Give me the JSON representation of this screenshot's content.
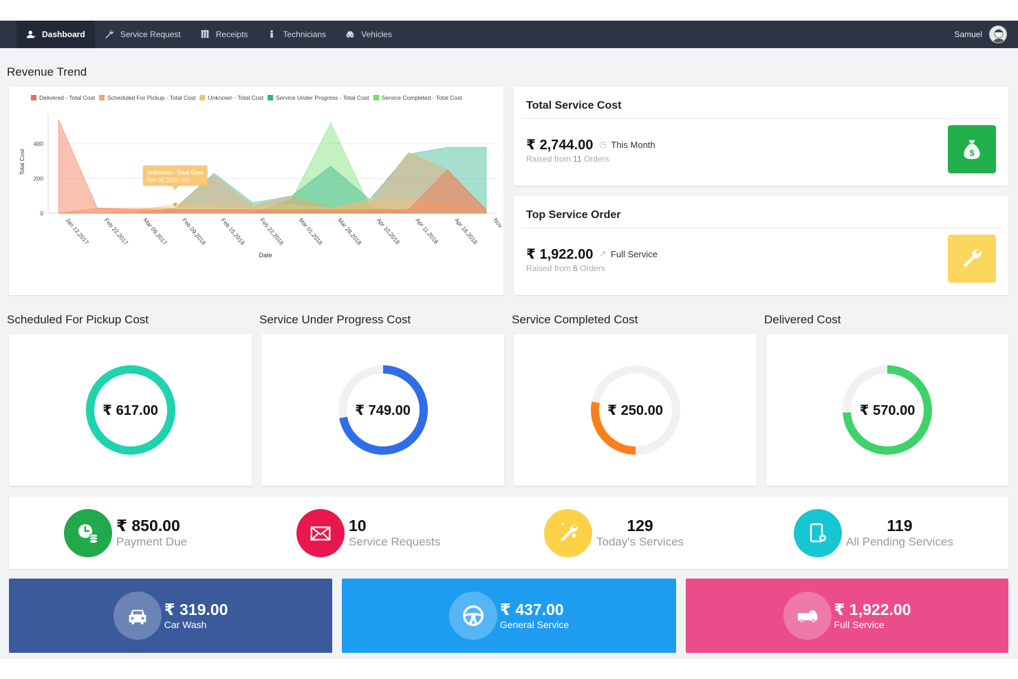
{
  "nav": {
    "items": [
      {
        "label": "Dashboard",
        "icon": "user-icon"
      },
      {
        "label": "Service Request",
        "icon": "wrench-icon"
      },
      {
        "label": "Receipts",
        "icon": "receipt-icon"
      },
      {
        "label": "Technicians",
        "icon": "technician-icon"
      },
      {
        "label": "Vehicles",
        "icon": "car-icon"
      }
    ],
    "user": "Samuel"
  },
  "revenue": {
    "title": "Revenue Trend",
    "tooltip_title": "Unknown - Total Cost",
    "tooltip_value": "Feb 09,2018 : 50"
  },
  "chart_data": {
    "type": "area",
    "xlabel": "Date",
    "ylabel": "Total Cost",
    "ylim": [
      0,
      550
    ],
    "yticks": [
      0,
      200,
      400
    ],
    "legend_position": "top",
    "x": [
      "Jan 12,2017",
      "Feb 22,2017",
      "Mar 09,2017",
      "Feb 09,2018",
      "Feb 15,2018",
      "Feb 22,2018",
      "Mar 01,2018",
      "Mar 28,2018",
      "Apr 10,2018",
      "Apr 11,2018",
      "Apr 18,2018",
      "Nov"
    ],
    "series": [
      {
        "name": "Delivered - Total Cost",
        "color": "#f26b4a",
        "values": [
          540,
          30,
          20,
          20,
          20,
          20,
          20,
          20,
          20,
          20,
          250,
          20
        ]
      },
      {
        "name": "Scheduled For Pickup - Total Cost",
        "color": "#f5a26b",
        "values": [
          0,
          30,
          30,
          30,
          220,
          40,
          100,
          30,
          60,
          350,
          250,
          20
        ]
      },
      {
        "name": "Unknown - Total Cost",
        "color": "#fbc26e",
        "values": [
          0,
          0,
          20,
          50,
          50,
          40,
          50,
          30,
          80,
          80,
          50,
          20
        ]
      },
      {
        "name": "Service Under Progress - Total Cost",
        "color": "#2cb38a",
        "values": [
          0,
          0,
          0,
          30,
          230,
          60,
          100,
          270,
          80,
          340,
          380,
          380
        ]
      },
      {
        "name": "Service Completed - Total Cost",
        "color": "#6fdd6a",
        "values": [
          0,
          0,
          0,
          0,
          0,
          0,
          80,
          520,
          40,
          0,
          0,
          0
        ]
      }
    ]
  },
  "total_service": {
    "title": "Total Service Cost",
    "amount": "₹ 2,744.00",
    "period": "This Month",
    "raised_prefix": "Raised from",
    "raised_count": "11",
    "raised_suffix": "Orders",
    "badge_color": "#21b04a",
    "icon": "money-bag-icon"
  },
  "top_service": {
    "title": "Top Service Order",
    "amount": "₹ 1,922.00",
    "service": "Full Service",
    "raised_prefix": "Raised from",
    "raised_count": "6",
    "raised_suffix": "Orders",
    "badge_color": "#fbd85d",
    "icon": "wrench-icon"
  },
  "donuts": [
    {
      "title": "Scheduled For Pickup Cost",
      "value": "₹ 617.00",
      "fill": 1.0,
      "color": "#1fd3ae",
      "start": "bottom"
    },
    {
      "title": "Service Under Progress Cost",
      "value": "₹ 749.00",
      "fill": 0.72,
      "color": "#2f6ee8",
      "start": "top"
    },
    {
      "title": "Service Completed Cost",
      "value": "₹ 250.00",
      "fill": 0.28,
      "color": "#fa7f1a",
      "start": "bottom"
    },
    {
      "title": "Delivered Cost",
      "value": "₹ 570.00",
      "fill": 0.74,
      "color": "#3dd36a",
      "start": "top"
    }
  ],
  "stats": [
    {
      "value": "₹ 850.00",
      "label": "Payment Due",
      "color": "#21a94c",
      "icon": "payment-clock-icon"
    },
    {
      "value": "10",
      "label": "Service Requests",
      "color": "#e8174e",
      "icon": "envelope-icon"
    },
    {
      "value": "129",
      "label": "Today's Services",
      "color": "#fdd148",
      "icon": "tools-icon"
    },
    {
      "value": "119",
      "label": "All Pending Services",
      "color": "#17c6d3",
      "icon": "tablet-gear-icon"
    }
  ],
  "tiles": [
    {
      "value": "₹ 319.00",
      "label": "Car Wash",
      "color": "#3a5a9c",
      "icon": "car-front-icon"
    },
    {
      "value": "₹ 437.00",
      "label": "General Service",
      "color": "#1e9df0",
      "icon": "steering-wheel-icon"
    },
    {
      "value": "₹ 1,922.00",
      "label": "Full Service",
      "color": "#ea4d8a",
      "icon": "truck-icon"
    }
  ]
}
